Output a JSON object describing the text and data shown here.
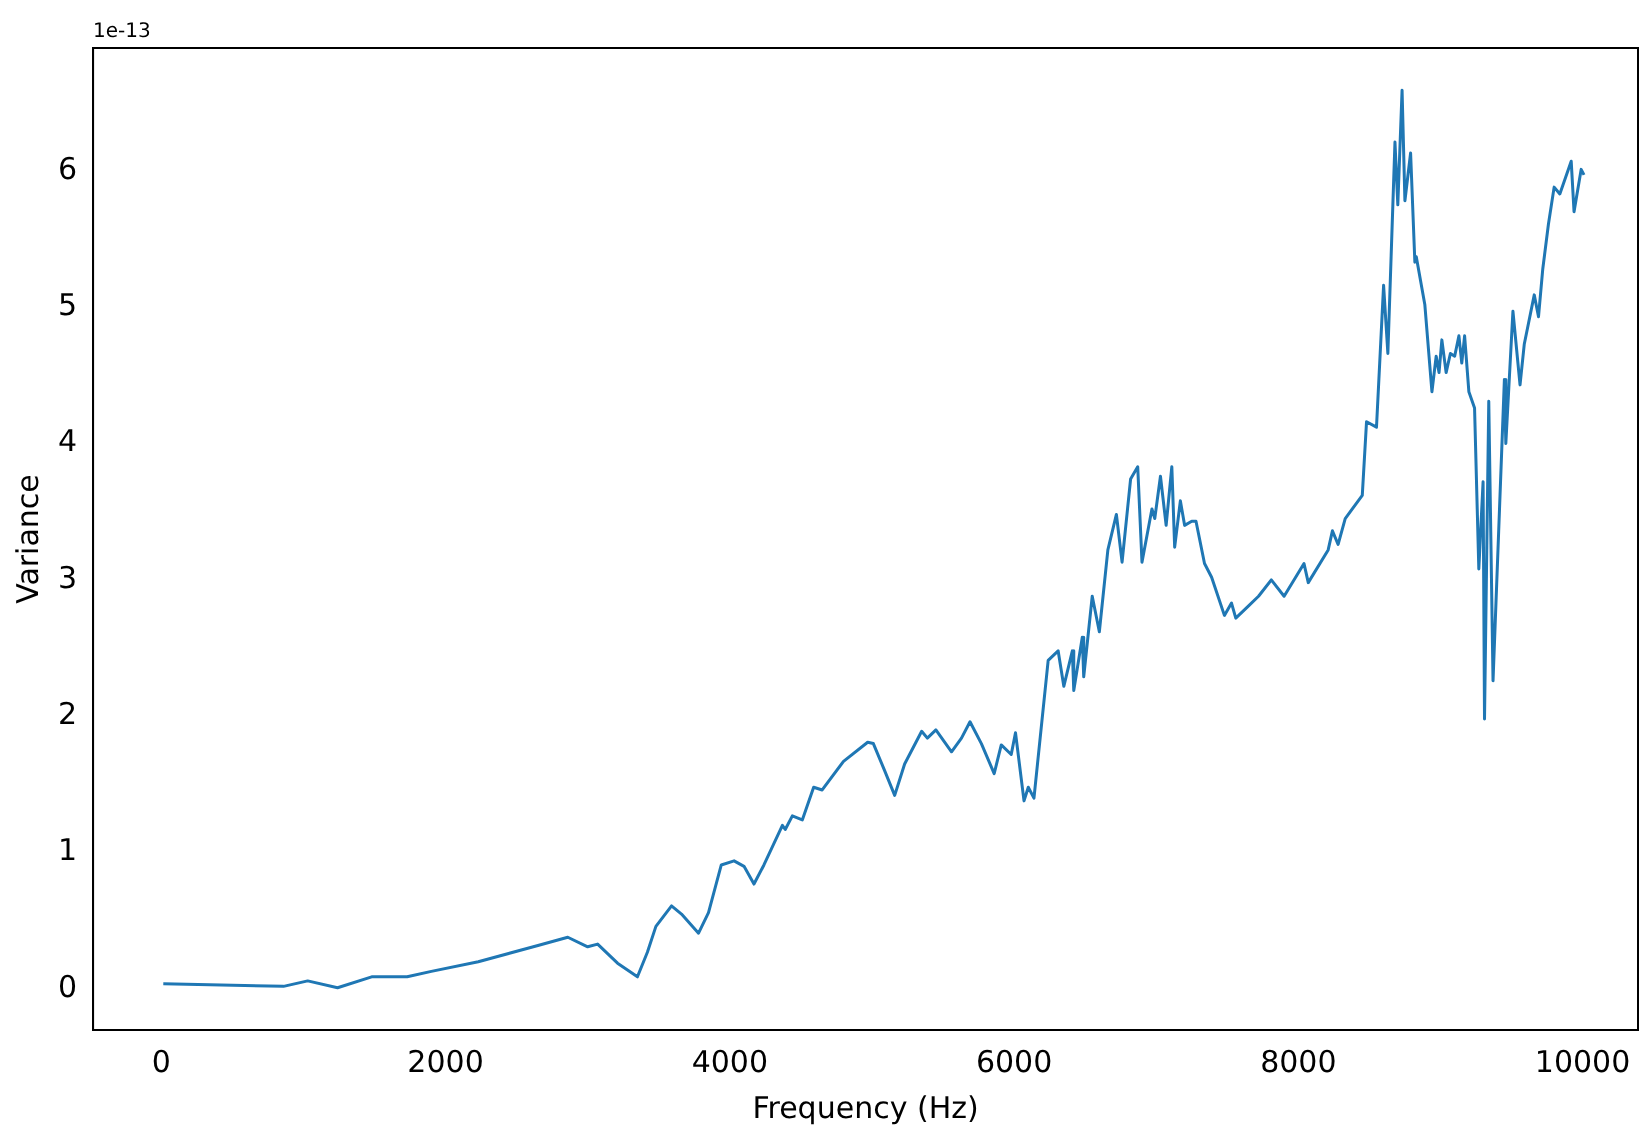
{
  "chart_data": {
    "type": "line",
    "xlabel": "Frequency (Hz)",
    "ylabel": "Variance",
    "annotations": [
      "1e-13"
    ],
    "xlim": [
      -480,
      10390
    ],
    "ylim": [
      -0.3,
      6.9
    ],
    "xticks": [
      0,
      2000,
      4000,
      6000,
      8000,
      10000
    ],
    "yticks": [
      0,
      1,
      2,
      3,
      4,
      5,
      6
    ],
    "grid": false,
    "legend": false,
    "marker": "none",
    "line_style": "solid",
    "series": [
      {
        "color": "#1f77b4",
        "x": [
          14,
          860,
          1030,
          1240,
          1480,
          1730,
          1900,
          2230,
          2650,
          2860,
          3000,
          3070,
          3210,
          3350,
          3420,
          3480,
          3590,
          3660,
          3780,
          3850,
          3940,
          4030,
          4100,
          4170,
          4240,
          4370,
          4390,
          4440,
          4510,
          4590,
          4650,
          4800,
          4970,
          5010,
          5090,
          5160,
          5230,
          5350,
          5390,
          5450,
          5560,
          5630,
          5690,
          5770,
          5860,
          5910,
          5980,
          6010,
          6070,
          6100,
          6140,
          6240,
          6310,
          6350,
          6410,
          6420,
          6480,
          6490,
          6550,
          6600,
          6660,
          6720,
          6760,
          6820,
          6870,
          6900,
          6970,
          6990,
          7030,
          7070,
          7110,
          7130,
          7170,
          7200,
          7250,
          7280,
          7340,
          7390,
          7480,
          7530,
          7560,
          7650,
          7720,
          7810,
          7900,
          8040,
          8070,
          8210,
          8240,
          8280,
          8330,
          8450,
          8480,
          8550,
          8600,
          8630,
          8680,
          8700,
          8730,
          8750,
          8790,
          8820,
          8830,
          8890,
          8940,
          8970,
          8990,
          9010,
          9040,
          9070,
          9100,
          9130,
          9150,
          9170,
          9200,
          9240,
          9270,
          9300,
          9310,
          9340,
          9370,
          9450,
          9460,
          9510,
          9560,
          9590,
          9660,
          9690,
          9720,
          9760,
          9800,
          9840,
          9920,
          9940,
          9990,
          10010
        ],
        "values": [
          0.04,
          0.02,
          0.06,
          0.01,
          0.09,
          0.09,
          0.13,
          0.2,
          0.32,
          0.38,
          0.31,
          0.33,
          0.19,
          0.09,
          0.27,
          0.46,
          0.61,
          0.55,
          0.41,
          0.56,
          0.91,
          0.94,
          0.9,
          0.77,
          0.91,
          1.2,
          1.17,
          1.27,
          1.24,
          1.48,
          1.46,
          1.67,
          1.81,
          1.8,
          1.6,
          1.42,
          1.65,
          1.89,
          1.84,
          1.9,
          1.74,
          1.84,
          1.96,
          1.8,
          1.58,
          1.79,
          1.72,
          1.88,
          1.38,
          1.48,
          1.4,
          2.41,
          2.48,
          2.22,
          2.48,
          2.19,
          2.58,
          2.29,
          2.88,
          2.62,
          3.22,
          3.48,
          3.13,
          3.74,
          3.83,
          3.13,
          3.52,
          3.45,
          3.76,
          3.4,
          3.83,
          3.24,
          3.58,
          3.4,
          3.43,
          3.43,
          3.12,
          3.02,
          2.74,
          2.83,
          2.72,
          2.81,
          2.88,
          3.0,
          2.88,
          3.12,
          2.98,
          3.22,
          3.36,
          3.26,
          3.45,
          3.62,
          4.16,
          4.12,
          5.16,
          4.66,
          6.21,
          5.75,
          6.59,
          5.78,
          6.13,
          5.33,
          5.37,
          5.02,
          4.38,
          4.64,
          4.52,
          4.76,
          4.52,
          4.66,
          4.64,
          4.79,
          4.59,
          4.79,
          4.38,
          4.26,
          3.08,
          3.72,
          1.98,
          4.31,
          2.26,
          4.47,
          4.0,
          4.97,
          4.43,
          4.73,
          5.09,
          4.93,
          5.28,
          5.61,
          5.88,
          5.83,
          6.07,
          5.7,
          6.01,
          5.97
        ]
      }
    ]
  }
}
